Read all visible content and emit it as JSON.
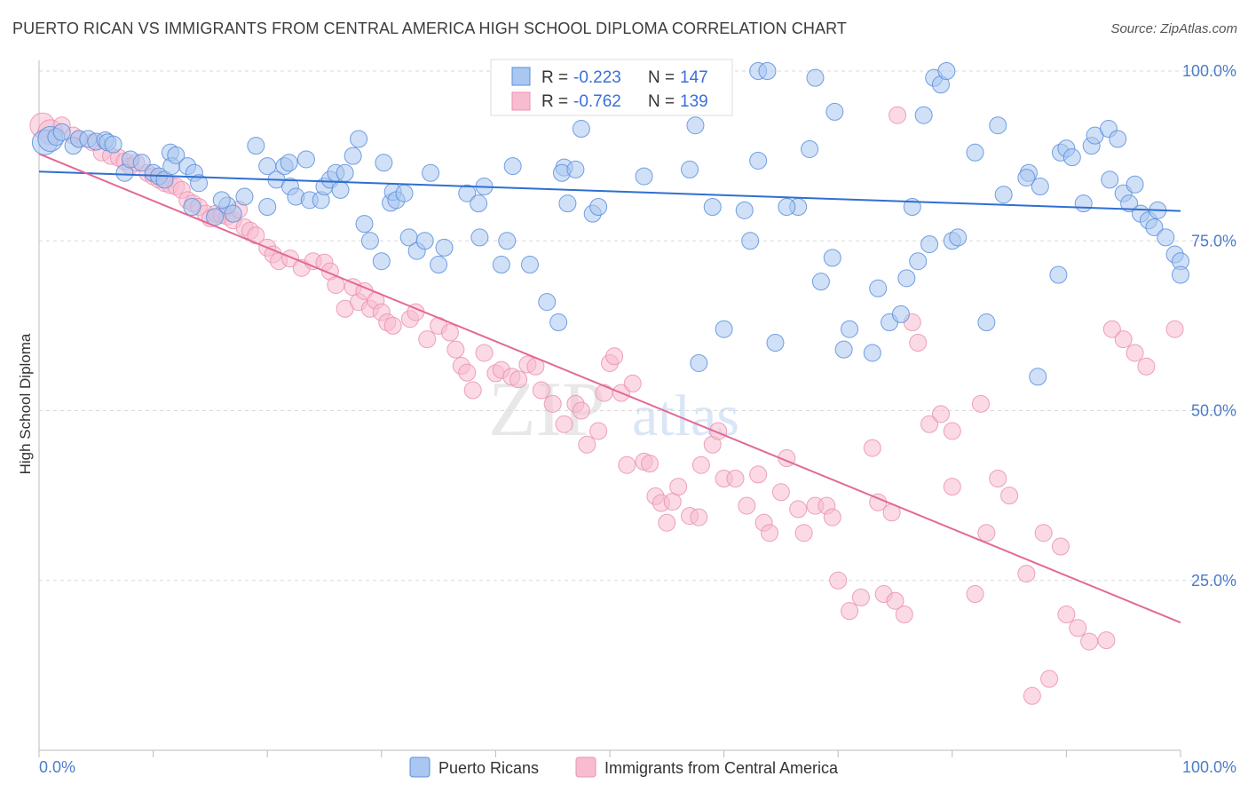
{
  "title": "PUERTO RICAN VS IMMIGRANTS FROM CENTRAL AMERICA HIGH SCHOOL DIPLOMA CORRELATION CHART",
  "source": "Source: ZipAtlas.com",
  "watermark": {
    "zip": "ZIP",
    "atlas": "atlas"
  },
  "colors": {
    "blue_fill": "#a9c7f0",
    "blue_stroke": "#5b8fdc",
    "blue_line": "#2f6fd0",
    "pink_fill": "#f7bcd0",
    "pink_stroke": "#e992b0",
    "pink_line": "#e36895",
    "tick_text": "#4a7cc9",
    "grid": "#d9d9d9"
  },
  "legend": {
    "r_label": "R =",
    "n_label": "N =",
    "series": [
      {
        "r": "-0.223",
        "n": "147"
      },
      {
        "r": "-0.762",
        "n": "139"
      }
    ]
  },
  "bottom_legend": [
    "Puerto Ricans",
    "Immigrants from Central America"
  ],
  "chart_data": {
    "type": "scatter",
    "xlabel": "",
    "ylabel": "High School Diploma",
    "xlim": [
      0,
      100
    ],
    "ylim": [
      0,
      100
    ],
    "x_tick_labels": [
      "0.0%",
      "100.0%"
    ],
    "y_tick_labels": [
      "100.0%",
      "75.0%",
      "50.0%",
      "25.0%"
    ],
    "y_ticks": [
      100,
      75,
      50,
      25
    ],
    "grid": true,
    "legend_position": "top-center",
    "series": [
      {
        "name": "Puerto Ricans",
        "r": -0.223,
        "n": 147,
        "trend": [
          [
            0,
            85.2
          ],
          [
            100,
            79.4
          ]
        ],
        "points": [
          [
            0.5,
            89.5
          ],
          [
            1,
            90
          ],
          [
            1.5,
            90.3
          ],
          [
            2,
            91
          ],
          [
            3,
            89
          ],
          [
            3.5,
            90
          ],
          [
            4.3,
            90
          ],
          [
            5,
            89.6
          ],
          [
            5.8,
            89.8
          ],
          [
            6,
            89.5
          ],
          [
            6.5,
            89.2
          ],
          [
            7.5,
            85
          ],
          [
            8,
            87
          ],
          [
            9,
            86.5
          ],
          [
            10,
            85
          ],
          [
            10.5,
            84.5
          ],
          [
            11,
            84
          ],
          [
            11.5,
            88
          ],
          [
            11.6,
            86
          ],
          [
            12,
            87.6
          ],
          [
            13,
            86
          ],
          [
            13.6,
            85
          ],
          [
            14,
            83.5
          ],
          [
            13.4,
            80
          ],
          [
            15.4,
            78.5
          ],
          [
            16.5,
            80.2
          ],
          [
            16,
            81
          ],
          [
            17,
            79
          ],
          [
            18,
            81.5
          ],
          [
            19,
            89
          ],
          [
            20,
            86
          ],
          [
            20,
            80
          ],
          [
            20.8,
            84
          ],
          [
            21.5,
            86
          ],
          [
            21.9,
            86.5
          ],
          [
            22,
            83
          ],
          [
            22.5,
            81.5
          ],
          [
            23.4,
            87
          ],
          [
            23.7,
            81
          ],
          [
            24.7,
            81
          ],
          [
            25,
            83
          ],
          [
            25.5,
            84
          ],
          [
            26,
            85
          ],
          [
            26.4,
            82.5
          ],
          [
            26.8,
            85
          ],
          [
            27.5,
            87.5
          ],
          [
            28,
            90
          ],
          [
            28.5,
            77.5
          ],
          [
            29,
            75
          ],
          [
            30,
            72
          ],
          [
            30.2,
            86.5
          ],
          [
            30.8,
            80.6
          ],
          [
            31,
            82.2
          ],
          [
            31.3,
            81
          ],
          [
            32,
            82
          ],
          [
            32.4,
            75.5
          ],
          [
            33.1,
            73.5
          ],
          [
            33.8,
            75
          ],
          [
            34.3,
            85
          ],
          [
            35,
            71.5
          ],
          [
            35.5,
            74
          ],
          [
            37.5,
            82
          ],
          [
            38.5,
            80.5
          ],
          [
            38.6,
            75.5
          ],
          [
            39,
            83
          ],
          [
            40.5,
            71.5
          ],
          [
            41,
            75
          ],
          [
            41.5,
            86
          ],
          [
            43,
            71.5
          ],
          [
            44.5,
            66
          ],
          [
            45.5,
            63
          ],
          [
            46,
            85.8
          ],
          [
            45.8,
            85
          ],
          [
            46.3,
            80.5
          ],
          [
            47,
            85.5
          ],
          [
            47.5,
            91.5
          ],
          [
            48.5,
            79
          ],
          [
            49,
            80
          ],
          [
            48.2,
            100
          ],
          [
            51,
            100
          ],
          [
            52.5,
            100
          ],
          [
            56,
            100
          ],
          [
            58.5,
            100
          ],
          [
            63,
            100
          ],
          [
            63.8,
            100
          ],
          [
            66.5,
            80
          ],
          [
            69.5,
            72.5
          ],
          [
            68.5,
            69
          ],
          [
            71,
            62
          ],
          [
            73,
            58.5
          ],
          [
            74.5,
            63
          ],
          [
            75.5,
            64.2
          ],
          [
            77,
            72
          ],
          [
            76.5,
            80
          ],
          [
            80,
            75
          ],
          [
            80.5,
            75.5
          ],
          [
            82,
            88
          ],
          [
            84,
            92
          ],
          [
            84.5,
            81.8
          ],
          [
            86.7,
            85
          ],
          [
            86.5,
            84.3
          ],
          [
            87.7,
            83
          ],
          [
            89.3,
            70
          ],
          [
            89.5,
            88
          ],
          [
            90,
            88.6
          ],
          [
            90.5,
            87.3
          ],
          [
            91.5,
            80.5
          ],
          [
            92.2,
            89
          ],
          [
            92.5,
            90.5
          ],
          [
            93.7,
            91.5
          ],
          [
            93.8,
            84
          ],
          [
            95,
            82
          ],
          [
            95.5,
            80.5
          ],
          [
            96,
            83.3
          ],
          [
            96.5,
            79
          ],
          [
            97.2,
            78
          ],
          [
            97.7,
            77
          ],
          [
            98,
            79.5
          ],
          [
            98.7,
            75.5
          ],
          [
            99.5,
            73
          ],
          [
            101,
            72
          ],
          [
            102,
            70
          ],
          [
            94.5,
            90
          ],
          [
            69.7,
            94
          ],
          [
            77.5,
            93.5
          ],
          [
            68,
            99
          ],
          [
            78.4,
            99
          ],
          [
            79,
            98
          ],
          [
            79.5,
            100
          ],
          [
            57.5,
            92
          ],
          [
            57,
            85.5
          ],
          [
            53,
            84.5
          ],
          [
            63,
            86.8
          ],
          [
            67.5,
            88.5
          ],
          [
            65.5,
            80
          ],
          [
            59,
            80
          ],
          [
            60,
            62
          ],
          [
            64.5,
            60
          ],
          [
            70.5,
            59
          ],
          [
            73.5,
            68
          ],
          [
            76,
            69.5
          ],
          [
            78,
            74.5
          ],
          [
            61.8,
            79.5
          ],
          [
            62.3,
            75
          ],
          [
            83,
            63
          ],
          [
            57.8,
            57
          ],
          [
            87.5,
            55
          ]
        ]
      },
      {
        "name": "Immigrants from Central America",
        "r": -0.762,
        "n": 139,
        "trend": [
          [
            0,
            87.8
          ],
          [
            100,
            18.8
          ]
        ],
        "points": [
          [
            0.3,
            92
          ],
          [
            1,
            91
          ],
          [
            2,
            92
          ],
          [
            3,
            90.5
          ],
          [
            3.5,
            90
          ],
          [
            4.7,
            89.5
          ],
          [
            5.5,
            88
          ],
          [
            6.3,
            87.5
          ],
          [
            7,
            87.2
          ],
          [
            7.5,
            86.7
          ],
          [
            8,
            86
          ],
          [
            8.5,
            86.5
          ],
          [
            9.5,
            85
          ],
          [
            10,
            84.5
          ],
          [
            10.5,
            84
          ],
          [
            11,
            83.5
          ],
          [
            11.5,
            83.2
          ],
          [
            12,
            83
          ],
          [
            12.5,
            82.5
          ],
          [
            13,
            81
          ],
          [
            13.5,
            80.5
          ],
          [
            14,
            80
          ],
          [
            14.6,
            79
          ],
          [
            15,
            78.3
          ],
          [
            15.5,
            79
          ],
          [
            16,
            78.8
          ],
          [
            16.5,
            78.6
          ],
          [
            17,
            78
          ],
          [
            17.5,
            79.6
          ],
          [
            18,
            77
          ],
          [
            18.5,
            76.5
          ],
          [
            19,
            75.8
          ],
          [
            20,
            74
          ],
          [
            20.5,
            73
          ],
          [
            21,
            72
          ],
          [
            22,
            72.4
          ],
          [
            23,
            71
          ],
          [
            24,
            72
          ],
          [
            25,
            71.8
          ],
          [
            25.5,
            70.5
          ],
          [
            26,
            68.5
          ],
          [
            26.8,
            65
          ],
          [
            27.5,
            68.2
          ],
          [
            28,
            66
          ],
          [
            28.5,
            67.6
          ],
          [
            29,
            65
          ],
          [
            29.5,
            66.2
          ],
          [
            30,
            64.5
          ],
          [
            30.5,
            63
          ],
          [
            31,
            62.5
          ],
          [
            32.5,
            63.5
          ],
          [
            33,
            64.5
          ],
          [
            34,
            60.5
          ],
          [
            35,
            62.5
          ],
          [
            36,
            61.5
          ],
          [
            36.5,
            59
          ],
          [
            37,
            56.6
          ],
          [
            37.5,
            55.6
          ],
          [
            38,
            53
          ],
          [
            39,
            58.5
          ],
          [
            40,
            55.5
          ],
          [
            40.5,
            56
          ],
          [
            41.4,
            55
          ],
          [
            42,
            54.6
          ],
          [
            42.8,
            56.8
          ],
          [
            43.5,
            56.5
          ],
          [
            44,
            53
          ],
          [
            45,
            51
          ],
          [
            46,
            48
          ],
          [
            47,
            51
          ],
          [
            47.5,
            50
          ],
          [
            48,
            45
          ],
          [
            49,
            47
          ],
          [
            49.5,
            52.6
          ],
          [
            50,
            57
          ],
          [
            50.4,
            58
          ],
          [
            51,
            52.6
          ],
          [
            51.5,
            42
          ],
          [
            52,
            54
          ],
          [
            53,
            42.5
          ],
          [
            53.5,
            42.2
          ],
          [
            54,
            37.4
          ],
          [
            54.5,
            36.4
          ],
          [
            55,
            33.5
          ],
          [
            55.5,
            36.6
          ],
          [
            56,
            38.8
          ],
          [
            57,
            34.5
          ],
          [
            57.8,
            34.3
          ],
          [
            58,
            42
          ],
          [
            59,
            45
          ],
          [
            59.5,
            47
          ],
          [
            60,
            40
          ],
          [
            61,
            40
          ],
          [
            62,
            36
          ],
          [
            63,
            40.6
          ],
          [
            63.5,
            33.5
          ],
          [
            64,
            32
          ],
          [
            65,
            38
          ],
          [
            65.5,
            43
          ],
          [
            66.5,
            35.5
          ],
          [
            67,
            32
          ],
          [
            68,
            36
          ],
          [
            69,
            36
          ],
          [
            69.5,
            34.3
          ],
          [
            70,
            25
          ],
          [
            71,
            20.5
          ],
          [
            72,
            22.5
          ],
          [
            73,
            44.5
          ],
          [
            74,
            23
          ],
          [
            74.7,
            35
          ],
          [
            75,
            22
          ],
          [
            76.5,
            63
          ],
          [
            77,
            60
          ],
          [
            78,
            48
          ],
          [
            79,
            49.5
          ],
          [
            80,
            47
          ],
          [
            80,
            38.8
          ],
          [
            82,
            23
          ],
          [
            82.5,
            51
          ],
          [
            83,
            32
          ],
          [
            84,
            40
          ],
          [
            85,
            37.5
          ],
          [
            86.5,
            26
          ],
          [
            87,
            8
          ],
          [
            88,
            32
          ],
          [
            88.5,
            10.5
          ],
          [
            89.5,
            30
          ],
          [
            90,
            20
          ],
          [
            91,
            18
          ],
          [
            92,
            16
          ],
          [
            93.5,
            16.2
          ],
          [
            94,
            62
          ],
          [
            95,
            60.5
          ],
          [
            96,
            58.5
          ],
          [
            97,
            56.5
          ],
          [
            99.5,
            62
          ],
          [
            75.2,
            93.5
          ],
          [
            73.5,
            36.5
          ],
          [
            75.8,
            20
          ]
        ]
      }
    ]
  }
}
